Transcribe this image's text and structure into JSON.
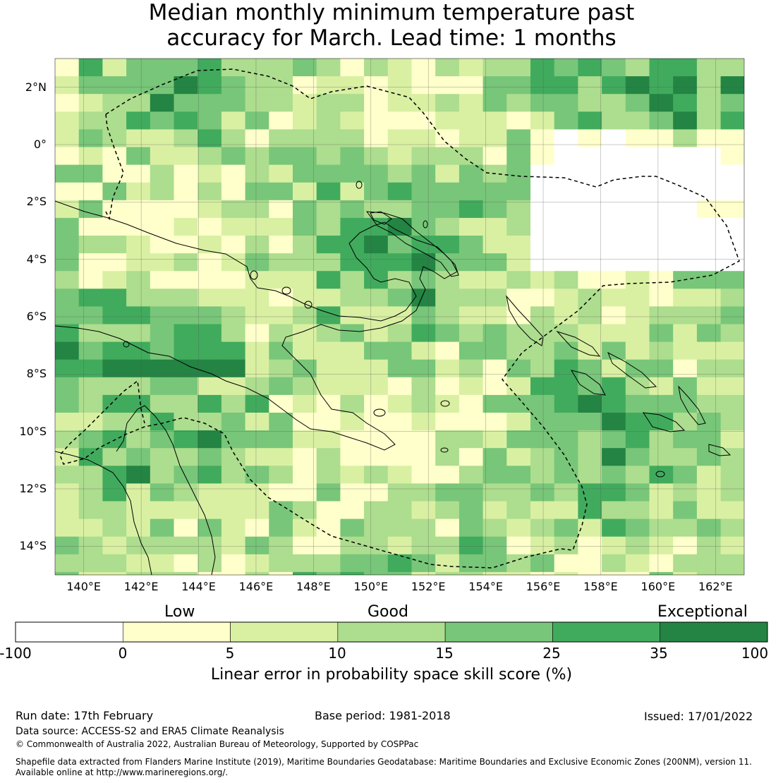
{
  "title": {
    "line1": "Median monthly minimum temperature past",
    "line2": "accuracy for March. Lead time: 1 months"
  },
  "map": {
    "lat_labels": [
      "2°N",
      "0°",
      "2°S",
      "4°S",
      "6°S",
      "8°S",
      "10°S",
      "12°S",
      "14°S"
    ],
    "lon_labels": [
      "140°E",
      "142°E",
      "144°E",
      "146°E",
      "148°E",
      "150°E",
      "152°E",
      "154°E",
      "156°E",
      "158°E",
      "160°E",
      "162°E"
    ],
    "lat_range": [
      -15.0,
      3.0
    ],
    "lon_range": [
      139.0,
      163.0
    ],
    "grid": "on",
    "boundary": "dashed EEZ outline"
  },
  "legend": {
    "categories": [
      "Low",
      "Good",
      "Exceptional"
    ],
    "bins": [
      {
        "from": "-100",
        "to": "0",
        "color": "#ffffff"
      },
      {
        "from": "0",
        "to": "5",
        "color": "#ffffcc"
      },
      {
        "from": "5",
        "to": "10",
        "color": "#d9f0a3"
      },
      {
        "from": "10",
        "to": "15",
        "color": "#addd8e"
      },
      {
        "from": "15",
        "to": "25",
        "color": "#78c679"
      },
      {
        "from": "25",
        "to": "35",
        "color": "#41ab5d"
      },
      {
        "from": "35",
        "to": "100",
        "color": "#238443"
      }
    ],
    "ticks": [
      "-100",
      "0",
      "5",
      "10",
      "15",
      "25",
      "35",
      "100"
    ],
    "title": "Linear error in probability space skill score (%)"
  },
  "footer": {
    "run_date": "Run date: 17th February",
    "base_period": "Base period: 1981-2018",
    "issued": "Issued: 17/01/2022",
    "data_source": "Data source: ACCESS-S2 and ERA5 Climate Reanalysis",
    "copyright": "© Commonwealth of Australia 2022, Australian Bureau of Meteorology, Supported by COSPPac",
    "shapefile_line1": "Shapefile data extracted from Flanders Marine Institute (2019), Maritime Boundaries Geodatabase: Maritime Boundaries and Exclusive Economic Zones (200NM), version 11.",
    "shapefile_line2": "Available online at http://www.marineregions.org/."
  }
}
